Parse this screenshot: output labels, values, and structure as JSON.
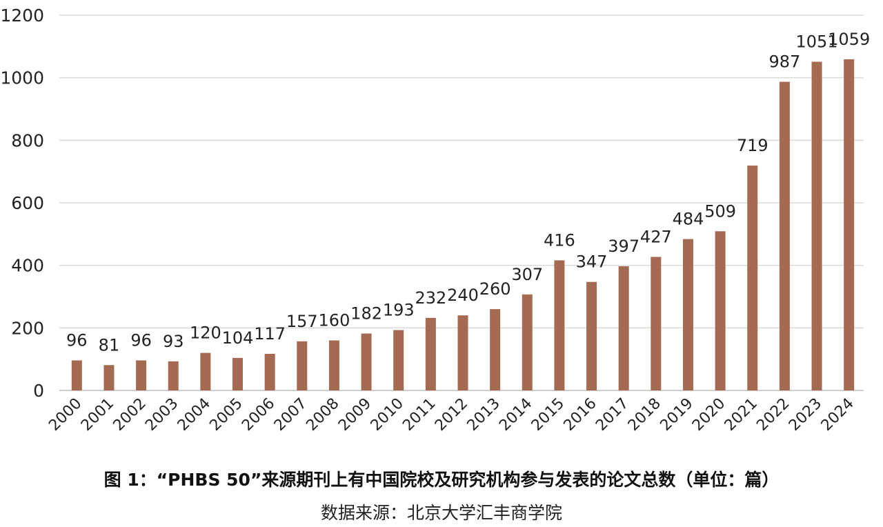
{
  "chart_data": {
    "type": "bar",
    "categories": [
      "2000",
      "2001",
      "2002",
      "2003",
      "2004",
      "2005",
      "2006",
      "2007",
      "2008",
      "2009",
      "2010",
      "2011",
      "2012",
      "2013",
      "2014",
      "2015",
      "2016",
      "2017",
      "2018",
      "2019",
      "2020",
      "2021",
      "2022",
      "2023",
      "2024"
    ],
    "values": [
      96,
      81,
      96,
      93,
      120,
      104,
      117,
      157,
      160,
      182,
      193,
      232,
      240,
      260,
      307,
      416,
      347,
      397,
      427,
      484,
      509,
      719,
      987,
      1051,
      1059
    ],
    "ylim": [
      0,
      1200
    ],
    "yticks": [
      0,
      200,
      400,
      600,
      800,
      1000,
      1200
    ],
    "grid": true,
    "bar_color": "#A56A52",
    "title": "图 1：“PHBS 50”来源期刊上有中国院校及研究机构参与发表的论文总数（单位：篇）",
    "source": "数据来源：北京大学汇丰商学院"
  }
}
